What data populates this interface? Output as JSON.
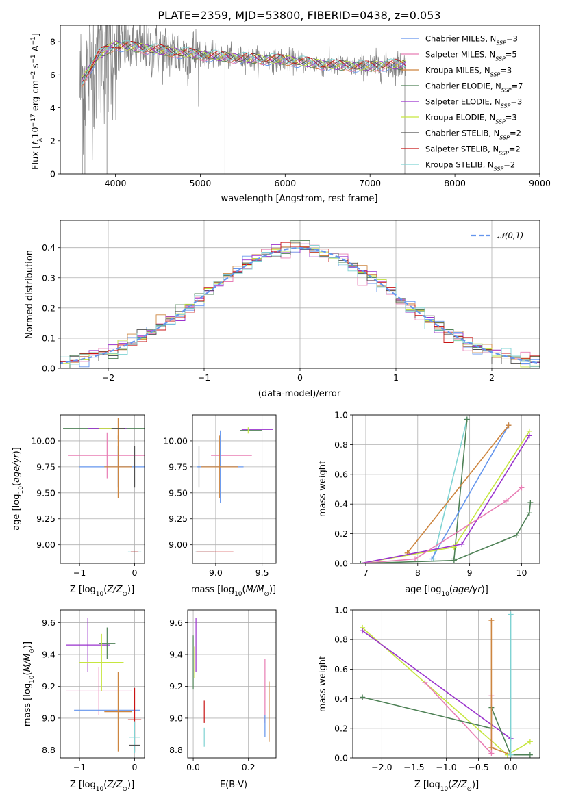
{
  "chart_data": [
    {
      "type": "line",
      "title": "PLATE=2359, MJD=53800, FIBERID=0438, z=0.053",
      "xlabel": "wavelength [Angstrom, rest frame]",
      "ylabel": "Flux [f_λ10^-17 erg cm^-2 s^-1 A^-1]",
      "xlim": [
        3350,
        9000
      ],
      "ylim": [
        0,
        9
      ],
      "xticks": [
        4000,
        5000,
        6000,
        7000,
        8000,
        9000
      ],
      "yticks": [
        0,
        2,
        4,
        6,
        8
      ],
      "legend_position": "upper-right",
      "series": [
        {
          "name": "Chabrier MILES, N_SSP=3",
          "color": "#6495ED"
        },
        {
          "name": "Salpeter MILES, N_SSP=5",
          "color": "#E87DB4"
        },
        {
          "name": "Kroupa MILES, N_SSP=3",
          "color": "#CD853F"
        },
        {
          "name": "Chabrier ELODIE, N_SSP=7",
          "color": "#4E8156"
        },
        {
          "name": "Salpeter ELODIE, N_SSP=3",
          "color": "#9A32CD"
        },
        {
          "name": "Kroupa ELODIE, N_SSP=3",
          "color": "#C6E63F"
        },
        {
          "name": "Chabrier STELIB, N_SSP=2",
          "color": "#505050"
        },
        {
          "name": "Salpeter STELIB, N_SSP=2",
          "color": "#C81414"
        },
        {
          "name": "Kroupa STELIB, N_SSP=2",
          "color": "#7FD3D3"
        }
      ],
      "approx_continuum": {
        "x": [
          3550,
          3650,
          3800,
          4000,
          4500,
          5000,
          5500,
          6000,
          6500,
          7000,
          7200,
          7400
        ],
        "y": [
          5.0,
          6.0,
          7.2,
          7.8,
          7.5,
          7.2,
          7.0,
          6.9,
          6.6,
          6.5,
          6.6,
          6.6
        ]
      }
    },
    {
      "type": "step",
      "xlabel": "(data-model)/error",
      "ylabel": "Normed distribution",
      "xlim": [
        -2.5,
        2.5
      ],
      "ylim": [
        0,
        0.49
      ],
      "xticks": [
        -2,
        -1,
        0,
        1,
        2
      ],
      "yticks": [
        0.0,
        0.1,
        0.2,
        0.3,
        0.4
      ],
      "grid": true,
      "legend": [
        "𝒩(0,1)"
      ],
      "legend_position": "upper-right"
    },
    {
      "type": "errorbar",
      "xlabel": "Z [log10(Z/Z⊙)]",
      "ylabel": "age  [log10(age/yr)]",
      "xlim": [
        -1.35,
        0.18
      ],
      "ylim": [
        8.82,
        10.25
      ],
      "xticks": [
        -1,
        0
      ],
      "yticks": [
        9.0,
        9.25,
        9.5,
        9.75,
        10.0
      ],
      "grid": true,
      "points": [
        {
          "x": -0.3,
          "y": 10.12,
          "xerr": 1.0,
          "yerr": 0.0,
          "color": "#4E8156"
        },
        {
          "x": -0.3,
          "y": 10.12,
          "xerr": 0.0,
          "yerr": 0.1,
          "color": "#CD853F"
        },
        {
          "x": -0.5,
          "y": 10.12,
          "xerr": 0.35,
          "yerr": 0.0,
          "color": "#9A32CD"
        },
        {
          "x": -0.42,
          "y": 10.12,
          "xerr": 0.22,
          "yerr": 0.0,
          "color": "#C6E63F"
        },
        {
          "x": -0.3,
          "y": 10.12,
          "xerr": 0.12,
          "yerr": 0.0,
          "color": "#505050"
        },
        {
          "x": -0.5,
          "y": 9.86,
          "xerr": 0.7,
          "yerr": 0.22,
          "color": "#E87DB4"
        },
        {
          "x": -0.3,
          "y": 9.75,
          "xerr": 0.7,
          "yerr": 0.2,
          "color": "#6495ED"
        },
        {
          "x": -0.3,
          "y": 9.75,
          "xerr": 0.25,
          "yerr": 0.3,
          "color": "#CD853F"
        },
        {
          "x": 0.0,
          "y": 9.75,
          "xerr": 0.0,
          "yerr": 0.2,
          "color": "#505050"
        },
        {
          "x": 0.0,
          "y": 8.93,
          "xerr": 0.12,
          "yerr": 0.0,
          "color": "#7FD3D3"
        },
        {
          "x": 0.0,
          "y": 8.93,
          "xerr": 0.07,
          "yerr": 0.0,
          "color": "#C81414"
        }
      ]
    },
    {
      "type": "errorbar",
      "xlabel": "mass [log10(M/M⊙)]",
      "xlim": [
        8.75,
        9.65
      ],
      "ylim": [
        8.82,
        10.25
      ],
      "xticks": [
        9.0,
        9.5
      ],
      "yticks": [
        9.0,
        9.25,
        9.5,
        9.75,
        10.0
      ],
      "grid": true,
      "points": [
        {
          "x": 9.45,
          "y": 10.11,
          "xerr": 0.17,
          "yerr": 0.0,
          "color": "#9A32CD"
        },
        {
          "x": 9.38,
          "y": 10.1,
          "xerr": 0.12,
          "yerr": 0.0,
          "color": "#4E8156"
        },
        {
          "x": 9.35,
          "y": 10.1,
          "xerr": 0.0,
          "yerr": 0.03,
          "color": "#C6E63F"
        },
        {
          "x": 9.17,
          "y": 9.86,
          "xerr": 0.22,
          "yerr": 0.0,
          "color": "#E87DB4"
        },
        {
          "x": 9.05,
          "y": 9.75,
          "xerr": 0.25,
          "yerr": 0.35,
          "color": "#6495ED"
        },
        {
          "x": 9.04,
          "y": 9.75,
          "xerr": 0.2,
          "yerr": 0.3,
          "color": "#CD853F"
        },
        {
          "x": 8.82,
          "y": 9.75,
          "xerr": 0.0,
          "yerr": 0.2,
          "color": "#505050"
        },
        {
          "x": 8.88,
          "y": 8.93,
          "xerr": 0.1,
          "yerr": 0.0,
          "color": "#7FD3D3"
        },
        {
          "x": 8.99,
          "y": 8.93,
          "xerr": 0.2,
          "yerr": 0.0,
          "color": "#C81414"
        }
      ]
    },
    {
      "type": "line",
      "xlabel": "age  [log10(age/yr)]",
      "ylabel": "mass weight",
      "xlim": [
        6.75,
        10.35
      ],
      "ylim": [
        0,
        1.0
      ],
      "xticks": [
        7,
        8,
        9,
        10
      ],
      "yticks": [
        0.0,
        0.2,
        0.4,
        0.6,
        0.8,
        1.0
      ],
      "grid": true,
      "series": [
        {
          "color": "#7FD3D3",
          "x": [
            8.3,
            8.95
          ],
          "y": [
            0.03,
            0.97
          ]
        },
        {
          "color": "#4E8156",
          "x": [
            8.7,
            8.95
          ],
          "y": [
            0.03,
            0.97
          ]
        },
        {
          "color": "#6495ED",
          "x": [
            8.27,
            9.75
          ],
          "y": [
            0.03,
            0.93
          ]
        },
        {
          "color": "#CD853F",
          "x": [
            7.8,
            9.75
          ],
          "y": [
            0.07,
            0.93
          ]
        },
        {
          "color": "#C6E63F",
          "x": [
            6.9,
            8.7,
            10.15
          ],
          "y": [
            0.0,
            0.11,
            0.89
          ]
        },
        {
          "color": "#9A32CD",
          "x": [
            6.9,
            8.85,
            10.15
          ],
          "y": [
            0.0,
            0.13,
            0.86
          ]
        },
        {
          "color": "#E87DB4",
          "x": [
            6.9,
            7.95,
            9.7,
            10.0
          ],
          "y": [
            0.0,
            0.03,
            0.42,
            0.51
          ]
        },
        {
          "color": "#4E8156",
          "x": [
            6.9,
            8.7,
            9.9,
            10.15,
            10.17
          ],
          "y": [
            0.0,
            0.02,
            0.19,
            0.34,
            0.41
          ]
        }
      ]
    },
    {
      "type": "errorbar",
      "xlabel": "Z [log10(Z/Z⊙)]",
      "ylabel": "mass [log10(M/M⊙)]",
      "xlim": [
        -1.35,
        0.18
      ],
      "ylim": [
        8.75,
        9.68
      ],
      "xticks": [
        -1,
        0
      ],
      "yticks": [
        8.8,
        9.0,
        9.2,
        9.4,
        9.6
      ],
      "grid": true,
      "points": [
        {
          "x": -0.85,
          "y": 9.46,
          "xerr": 0.4,
          "yerr": 0.17,
          "color": "#9A32CD"
        },
        {
          "x": -0.5,
          "y": 9.47,
          "xerr": 0.15,
          "yerr": 0.1,
          "color": "#4E8156"
        },
        {
          "x": -0.6,
          "y": 9.35,
          "xerr": 0.4,
          "yerr": 0.18,
          "color": "#C6E63F"
        },
        {
          "x": -0.65,
          "y": 9.17,
          "xerr": 0.6,
          "yerr": 0.15,
          "color": "#E87DB4"
        },
        {
          "x": -0.5,
          "y": 9.05,
          "xerr": 0.6,
          "yerr": 0.0,
          "color": "#6495ED"
        },
        {
          "x": -0.3,
          "y": 9.04,
          "xerr": 0.25,
          "yerr": 0.25,
          "color": "#CD853F"
        },
        {
          "x": 0.0,
          "y": 8.99,
          "xerr": 0.12,
          "yerr": 0.2,
          "color": "#C81414"
        },
        {
          "x": 0.0,
          "y": 8.88,
          "xerr": 0.1,
          "yerr": 0.1,
          "color": "#7FD3D3"
        },
        {
          "x": 0.0,
          "y": 8.83,
          "xerr": 0.1,
          "yerr": 0.0,
          "color": "#505050"
        }
      ]
    },
    {
      "type": "errorbar",
      "xlabel": "E(B-V)",
      "xlim": [
        -0.02,
        0.3
      ],
      "ylim": [
        8.75,
        9.68
      ],
      "xticks": [
        0.0,
        0.2
      ],
      "yticks": [
        8.8,
        9.0,
        9.2,
        9.4,
        9.6
      ],
      "grid": true,
      "points": [
        {
          "x": 0.0,
          "y": 9.35,
          "xerr": 0.0,
          "yerr": 0.17,
          "color": "#4E8156"
        },
        {
          "x": 0.01,
          "y": 9.46,
          "xerr": 0.0,
          "yerr": 0.17,
          "color": "#9A32CD"
        },
        {
          "x": 0.005,
          "y": 9.35,
          "xerr": 0.0,
          "yerr": 0.1,
          "color": "#C6E63F"
        },
        {
          "x": 0.04,
          "y": 9.04,
          "xerr": 0.0,
          "yerr": 0.07,
          "color": "#C81414"
        },
        {
          "x": 0.04,
          "y": 8.88,
          "xerr": 0.0,
          "yerr": 0.06,
          "color": "#7FD3D3"
        },
        {
          "x": 0.26,
          "y": 9.17,
          "xerr": 0.0,
          "yerr": 0.2,
          "color": "#E87DB4"
        },
        {
          "x": 0.26,
          "y": 8.95,
          "xerr": 0.0,
          "yerr": 0.07,
          "color": "#6495ED"
        },
        {
          "x": 0.275,
          "y": 9.04,
          "xerr": 0.0,
          "yerr": 0.19,
          "color": "#CD853F"
        }
      ]
    },
    {
      "type": "line",
      "xlabel": "Z [log10(Z/Z⊙)]",
      "ylabel": "mass weight",
      "xlim": [
        -2.45,
        0.45
      ],
      "ylim": [
        0,
        1.0
      ],
      "xticks": [
        -2.0,
        -1.5,
        -1.0,
        -0.5,
        0.0
      ],
      "yticks": [
        0.0,
        0.2,
        0.4,
        0.6,
        0.8,
        1.0
      ],
      "grid": true,
      "series": [
        {
          "color": "#C6E63F",
          "x": [
            -2.3,
            -0.05,
            0.3
          ],
          "y": [
            0.88,
            0.02,
            0.11
          ]
        },
        {
          "color": "#9A32CD",
          "x": [
            -2.3,
            0.0
          ],
          "y": [
            0.86,
            0.13
          ]
        },
        {
          "color": "#E87DB4",
          "x": [
            -1.33,
            -0.3,
            -0.3
          ],
          "y": [
            0.51,
            0.03,
            0.42
          ]
        },
        {
          "color": "#4E8156",
          "x": [
            -2.3,
            -0.3,
            -0.3,
            0.0,
            0.3
          ],
          "y": [
            0.41,
            0.2,
            0.34,
            0.02,
            0.02
          ]
        },
        {
          "color": "#CD853F",
          "x": [
            -0.3,
            -0.3,
            0.0
          ],
          "y": [
            0.93,
            0.07,
            0.02
          ]
        },
        {
          "color": "#7FD3D3",
          "x": [
            0.0,
            0.0
          ],
          "y": [
            0.97,
            0.02
          ]
        }
      ]
    }
  ]
}
